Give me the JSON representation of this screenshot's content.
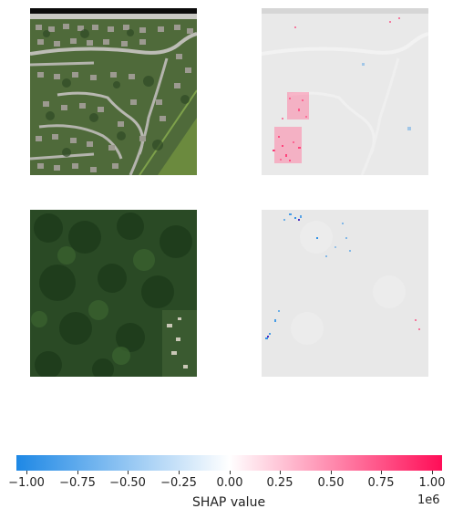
{
  "panels": [
    {
      "name": "input-image-residential"
    },
    {
      "name": "shap-overlay-residential"
    },
    {
      "name": "input-image-forest"
    },
    {
      "name": "shap-overlay-forest"
    }
  ],
  "colorbar": {
    "colors": {
      "negative": "#1e88e5",
      "neutral": "#ffffff",
      "positive": "#ff0d57"
    },
    "ticks": [
      "−1.00",
      "−0.75",
      "−0.50",
      "−0.25",
      "0.00",
      "0.25",
      "0.50",
      "0.75",
      "1.00"
    ],
    "tick_values": [
      -1.0,
      -0.75,
      -0.5,
      -0.25,
      0.0,
      0.25,
      0.5,
      0.75,
      1.0
    ],
    "range": [
      -1.05,
      1.05
    ],
    "scale_label": "1e6",
    "axis_label": "SHAP value"
  }
}
